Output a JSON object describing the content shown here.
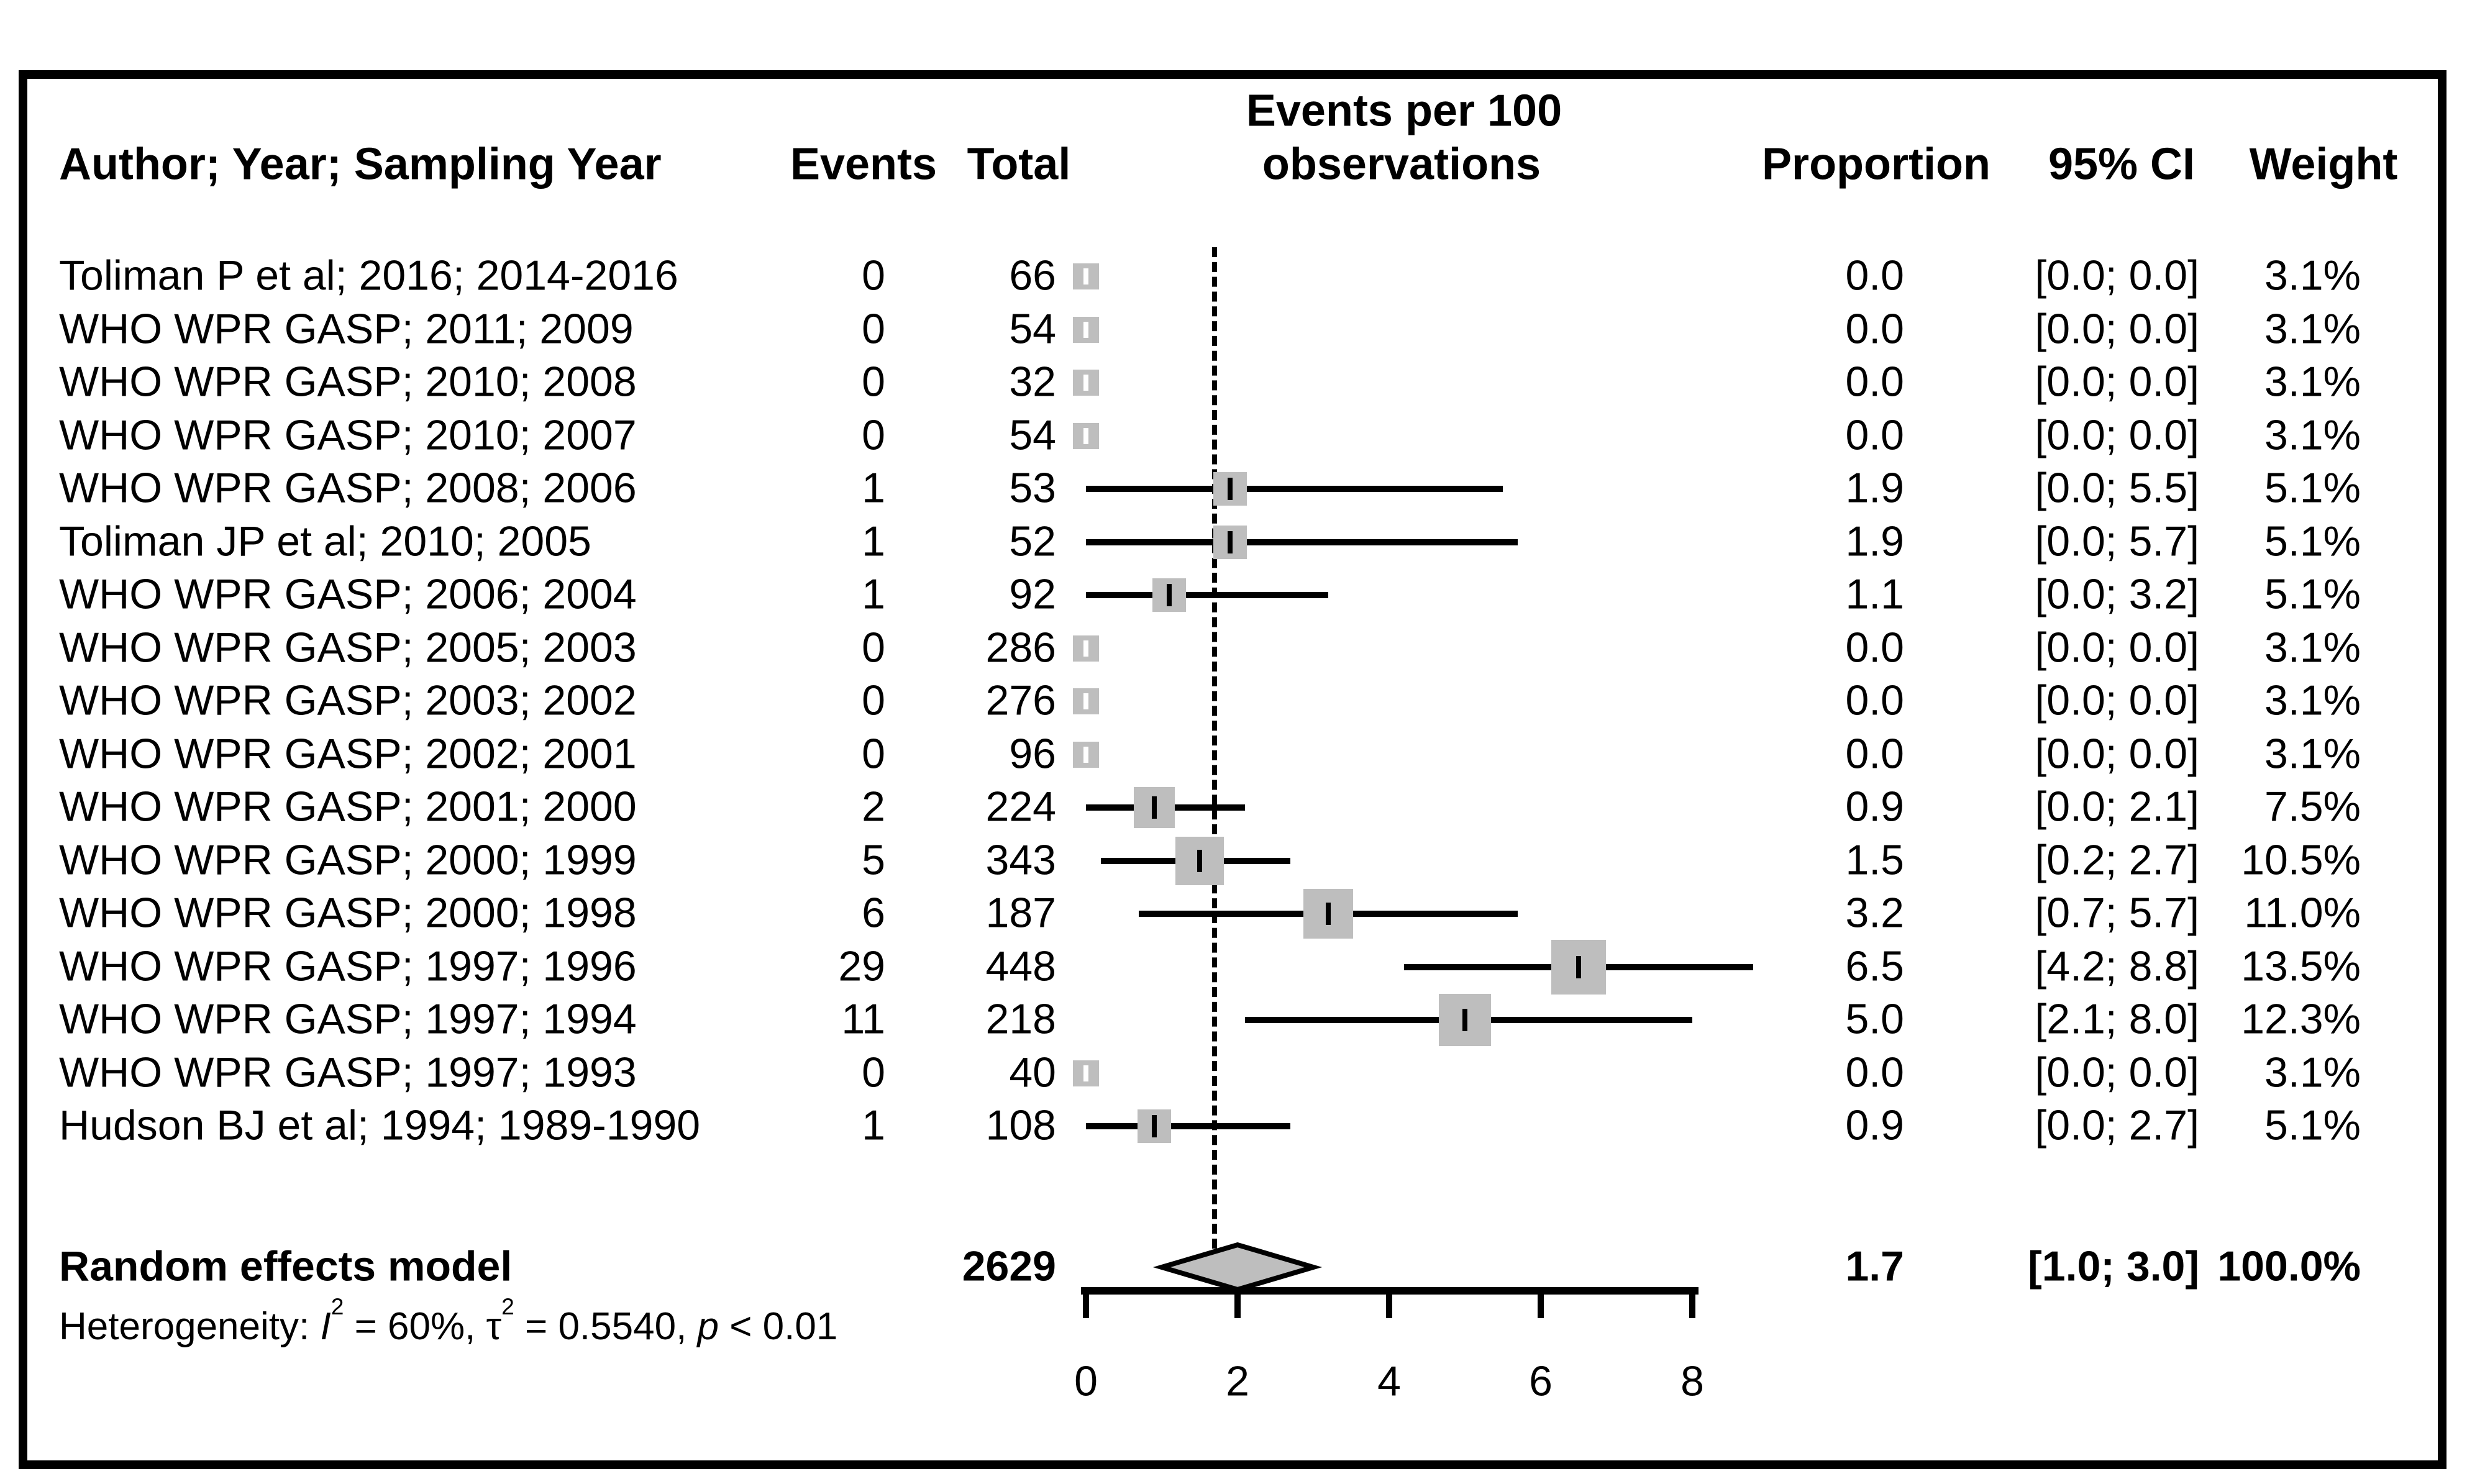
{
  "figure": {
    "columns": {
      "author": "Author; Year; Sampling Year",
      "events": "Events",
      "total": "Total",
      "plot_title_line1": "Events per 100",
      "plot_title_line2": "observations",
      "proportion": "Proportion",
      "ci": "95% CI",
      "weight": "Weight"
    },
    "colors": {
      "square": "#bebebe",
      "diamond_fill": "#bebebe",
      "line": "#000000",
      "background": "#ffffff",
      "zero_tick": "#ffffff"
    }
  },
  "chart_data": {
    "type": "forest",
    "title": "Events per 100 observations",
    "xlabel": "Events per 100 observations",
    "x_axis": {
      "ticks": [
        0,
        2,
        4,
        6,
        8
      ],
      "range": [
        0,
        8
      ]
    },
    "reference_line": 1.7,
    "grid": false,
    "studies": [
      {
        "author": "Toliman P et al; 2016; 2014-2016",
        "events": "0",
        "total": "66",
        "proportion": "0.0",
        "ci": "[0.0; 0.0]",
        "est": 0.0,
        "ci_lo": 0.0,
        "ci_hi": 0.0,
        "weight": "3.1%",
        "weight_pct": 3.1
      },
      {
        "author": "WHO WPR GASP; 2011; 2009",
        "events": "0",
        "total": "54",
        "proportion": "0.0",
        "ci": "[0.0; 0.0]",
        "est": 0.0,
        "ci_lo": 0.0,
        "ci_hi": 0.0,
        "weight": "3.1%",
        "weight_pct": 3.1
      },
      {
        "author": "WHO WPR GASP; 2010; 2008",
        "events": "0",
        "total": "32",
        "proportion": "0.0",
        "ci": "[0.0; 0.0]",
        "est": 0.0,
        "ci_lo": 0.0,
        "ci_hi": 0.0,
        "weight": "3.1%",
        "weight_pct": 3.1
      },
      {
        "author": "WHO WPR GASP; 2010; 2007",
        "events": "0",
        "total": "54",
        "proportion": "0.0",
        "ci": "[0.0; 0.0]",
        "est": 0.0,
        "ci_lo": 0.0,
        "ci_hi": 0.0,
        "weight": "3.1%",
        "weight_pct": 3.1
      },
      {
        "author": "WHO WPR GASP; 2008; 2006",
        "events": "1",
        "total": "53",
        "proportion": "1.9",
        "ci": "[0.0; 5.5]",
        "est": 1.9,
        "ci_lo": 0.0,
        "ci_hi": 5.5,
        "weight": "5.1%",
        "weight_pct": 5.1
      },
      {
        "author": "Toliman JP et al; 2010; 2005",
        "events": "1",
        "total": "52",
        "proportion": "1.9",
        "ci": "[0.0; 5.7]",
        "est": 1.9,
        "ci_lo": 0.0,
        "ci_hi": 5.7,
        "weight": "5.1%",
        "weight_pct": 5.1
      },
      {
        "author": "WHO WPR GASP; 2006; 2004",
        "events": "1",
        "total": "92",
        "proportion": "1.1",
        "ci": "[0.0; 3.2]",
        "est": 1.1,
        "ci_lo": 0.0,
        "ci_hi": 3.2,
        "weight": "5.1%",
        "weight_pct": 5.1
      },
      {
        "author": "WHO WPR GASP; 2005; 2003",
        "events": "0",
        "total": "286",
        "proportion": "0.0",
        "ci": "[0.0; 0.0]",
        "est": 0.0,
        "ci_lo": 0.0,
        "ci_hi": 0.0,
        "weight": "3.1%",
        "weight_pct": 3.1
      },
      {
        "author": "WHO WPR GASP; 2003; 2002",
        "events": "0",
        "total": "276",
        "proportion": "0.0",
        "ci": "[0.0; 0.0]",
        "est": 0.0,
        "ci_lo": 0.0,
        "ci_hi": 0.0,
        "weight": "3.1%",
        "weight_pct": 3.1
      },
      {
        "author": "WHO WPR GASP; 2002; 2001",
        "events": "0",
        "total": "96",
        "proportion": "0.0",
        "ci": "[0.0; 0.0]",
        "est": 0.0,
        "ci_lo": 0.0,
        "ci_hi": 0.0,
        "weight": "3.1%",
        "weight_pct": 3.1
      },
      {
        "author": "WHO WPR GASP; 2001; 2000",
        "events": "2",
        "total": "224",
        "proportion": "0.9",
        "ci": "[0.0; 2.1]",
        "est": 0.9,
        "ci_lo": 0.0,
        "ci_hi": 2.1,
        "weight": "7.5%",
        "weight_pct": 7.5
      },
      {
        "author": "WHO WPR GASP; 2000; 1999",
        "events": "5",
        "total": "343",
        "proportion": "1.5",
        "ci": "[0.2; 2.7]",
        "est": 1.5,
        "ci_lo": 0.2,
        "ci_hi": 2.7,
        "weight": "10.5%",
        "weight_pct": 10.5
      },
      {
        "author": "WHO WPR GASP; 2000; 1998",
        "events": "6",
        "total": "187",
        "proportion": "3.2",
        "ci": "[0.7; 5.7]",
        "est": 3.2,
        "ci_lo": 0.7,
        "ci_hi": 5.7,
        "weight": "11.0%",
        "weight_pct": 11.0
      },
      {
        "author": "WHO WPR GASP; 1997; 1996",
        "events": "29",
        "total": "448",
        "proportion": "6.5",
        "ci": "[4.2; 8.8]",
        "est": 6.5,
        "ci_lo": 4.2,
        "ci_hi": 8.8,
        "weight": "13.5%",
        "weight_pct": 13.5
      },
      {
        "author": "WHO WPR GASP; 1997; 1994",
        "events": "11",
        "total": "218",
        "proportion": "5.0",
        "ci": "[2.1; 8.0]",
        "est": 5.0,
        "ci_lo": 2.1,
        "ci_hi": 8.0,
        "weight": "12.3%",
        "weight_pct": 12.3
      },
      {
        "author": "WHO WPR GASP; 1997; 1993",
        "events": "0",
        "total": "40",
        "proportion": "0.0",
        "ci": "[0.0; 0.0]",
        "est": 0.0,
        "ci_lo": 0.0,
        "ci_hi": 0.0,
        "weight": "3.1%",
        "weight_pct": 3.1
      },
      {
        "author": "Hudson BJ et al; 1994; 1989-1990",
        "events": "1",
        "total": "108",
        "proportion": "0.9",
        "ci": "[0.0; 2.7]",
        "est": 0.9,
        "ci_lo": 0.0,
        "ci_hi": 2.7,
        "weight": "5.1%",
        "weight_pct": 5.1
      }
    ],
    "overall": {
      "label": "Random effects model",
      "total": "2629",
      "proportion": "1.7",
      "ci": "[1.0; 3.0]",
      "est": 1.7,
      "ci_lo": 1.0,
      "ci_hi": 3.0,
      "weight": "100.0%",
      "weight_pct": 100.0
    },
    "heterogeneity": {
      "prefix": "Heterogeneity: ",
      "stat1_name": "I",
      "stat1_sup": "2",
      "stat1_rest": " = 60%, ",
      "stat2_name": "τ",
      "stat2_sup": "2",
      "stat2_rest": " = 0.5540, ",
      "p_name": "p",
      "p_rest": " < 0.01",
      "full_text": "Heterogeneity: I2 = 60%, τ2 = 0.5540, p < 0.01"
    }
  }
}
